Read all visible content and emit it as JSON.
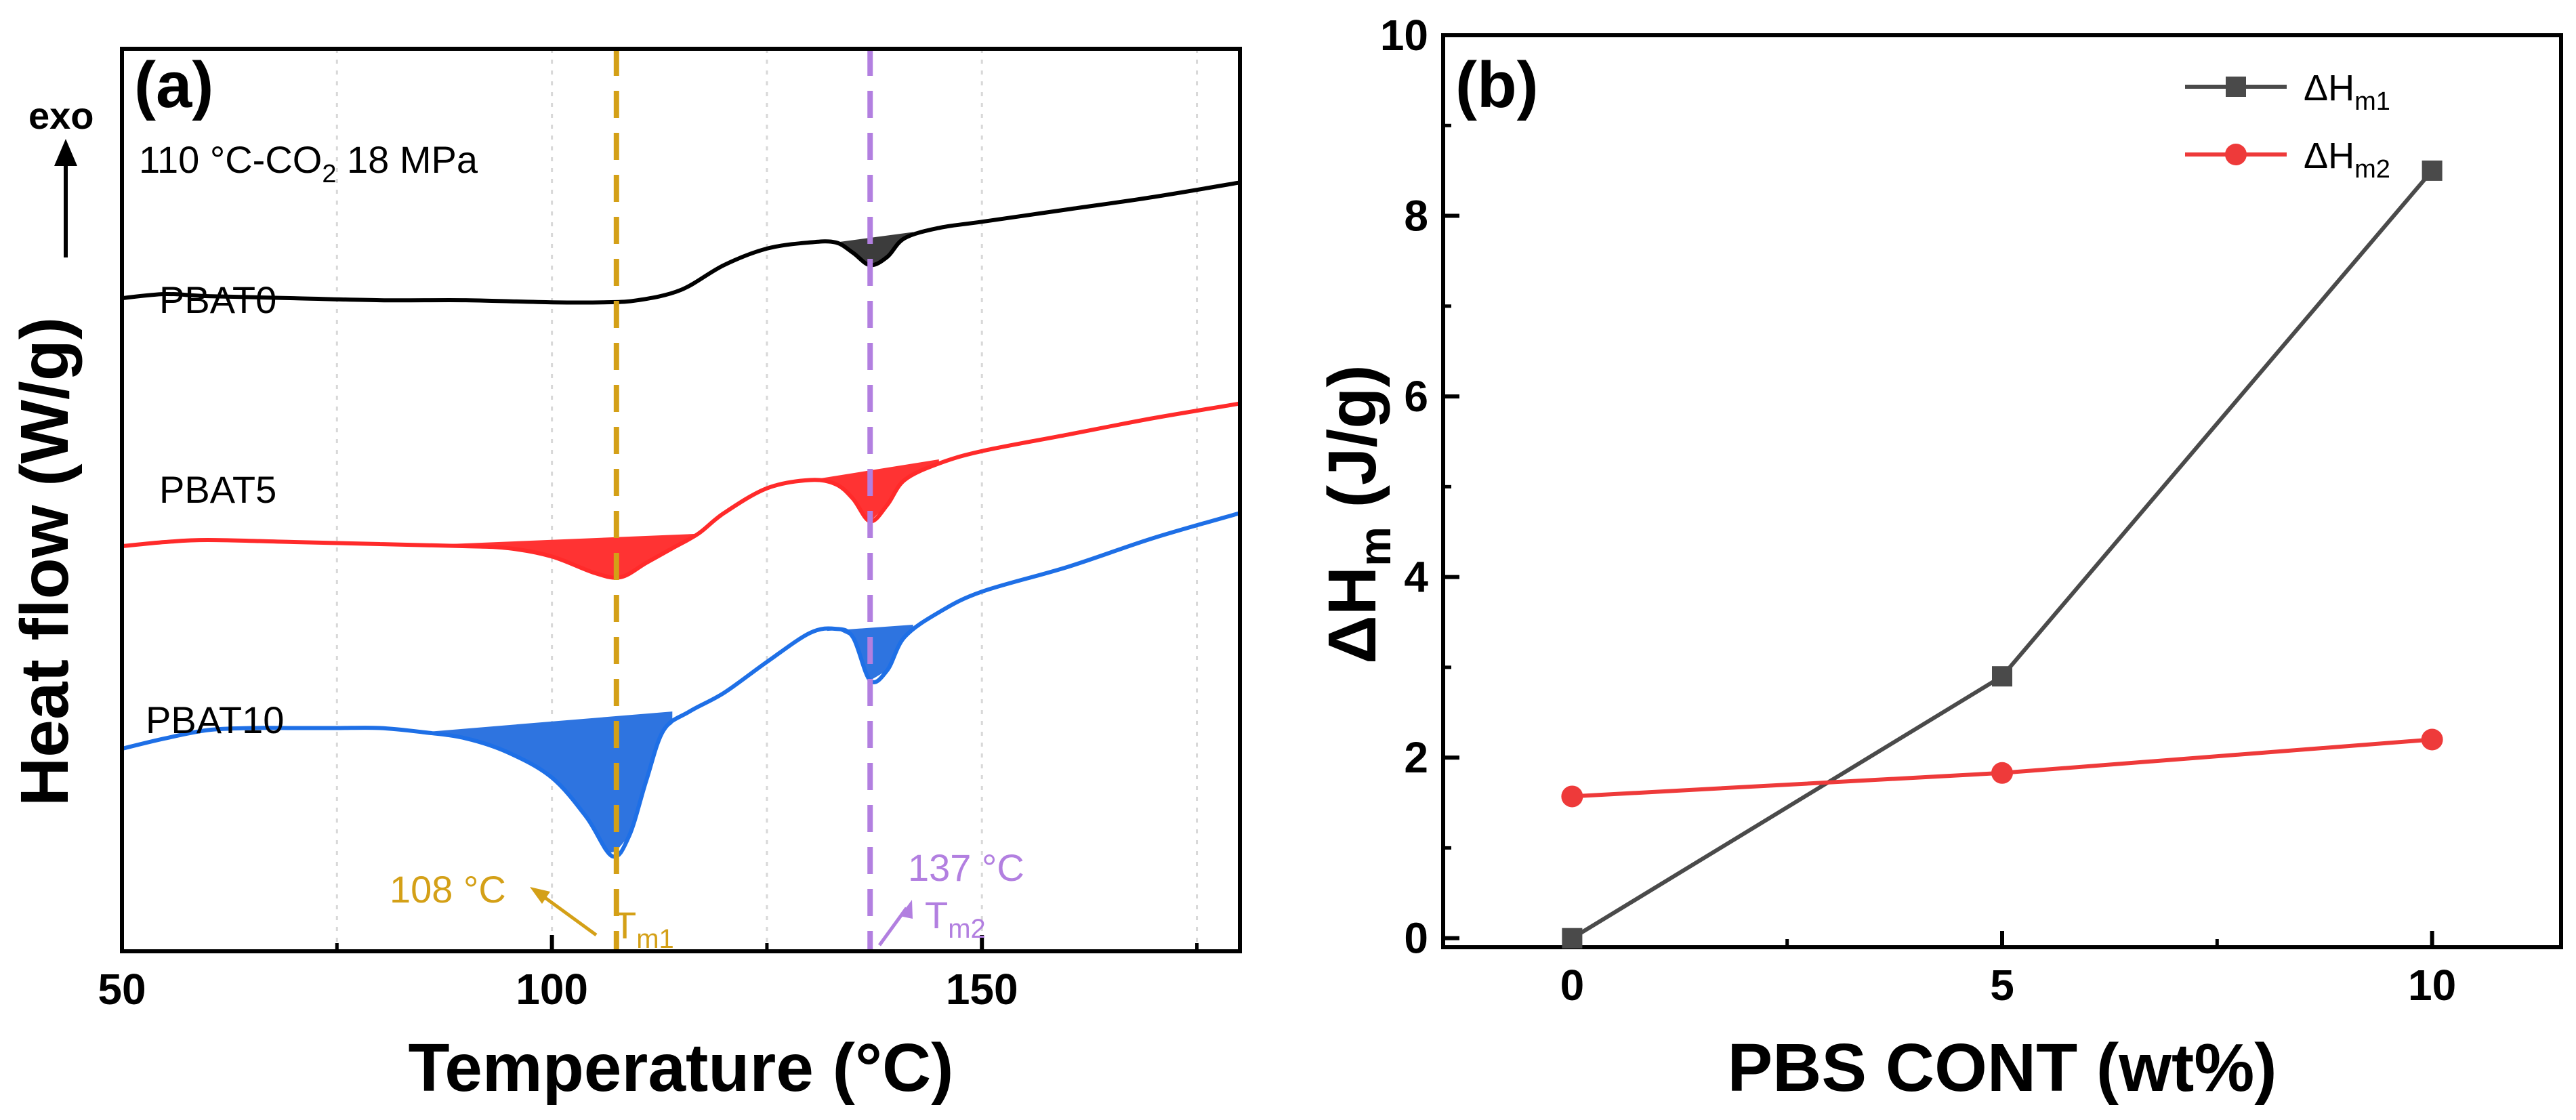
{
  "chart_data": [
    {
      "panel": "(a)",
      "type": "line",
      "xlabel": "Temperature (°C)",
      "ylabel": "Heat flow (W/g)",
      "exo_label": "exo",
      "xlim": [
        50,
        180
      ],
      "x_ticks": [
        50,
        100,
        150
      ],
      "condition": "110 °C-CO",
      "condition_sub": "2",
      "condition_tail": " 18 MPa",
      "y_ticks_shown": false,
      "series": [
        {
          "name": "PBAT0",
          "color": "#000000",
          "fill": "#3c3c3c",
          "points": [
            [
              50,
              0.18
            ],
            [
              55,
              0.2
            ],
            [
              60,
              0.19
            ],
            [
              70,
              0.18
            ],
            [
              80,
              0.17
            ],
            [
              90,
              0.17
            ],
            [
              100,
              0.16
            ],
            [
              106,
              0.16
            ],
            [
              110,
              0.17
            ],
            [
              115,
              0.22
            ],
            [
              120,
              0.34
            ],
            [
              125,
              0.42
            ],
            [
              130,
              0.45
            ],
            [
              133,
              0.45
            ],
            [
              135,
              0.4
            ],
            [
              137,
              0.34
            ],
            [
              139,
              0.38
            ],
            [
              141,
              0.47
            ],
            [
              145,
              0.52
            ],
            [
              150,
              0.55
            ],
            [
              160,
              0.61
            ],
            [
              170,
              0.67
            ],
            [
              180,
              0.74
            ]
          ],
          "fill_regions": [
            {
              "baseline": [
                [
                  133,
                  0.45
                ],
                [
                  142,
                  0.5
                ]
              ],
              "curve_range": [
                133,
                142
              ]
            }
          ]
        },
        {
          "name": "PBAT5",
          "color": "#ff2a2a",
          "fill": "#ff3333",
          "points": [
            [
              50,
              -1.02
            ],
            [
              55,
              -1.0
            ],
            [
              60,
              -0.99
            ],
            [
              70,
              -1.0
            ],
            [
              80,
              -1.01
            ],
            [
              90,
              -1.02
            ],
            [
              95,
              -1.03
            ],
            [
              100,
              -1.07
            ],
            [
              105,
              -1.15
            ],
            [
              108,
              -1.17
            ],
            [
              111,
              -1.1
            ],
            [
              114,
              -1.03
            ],
            [
              117,
              -0.96
            ],
            [
              120,
              -0.86
            ],
            [
              125,
              -0.74
            ],
            [
              130,
              -0.7
            ],
            [
              133,
              -0.72
            ],
            [
              135,
              -0.79
            ],
            [
              137,
              -0.9
            ],
            [
              139,
              -0.82
            ],
            [
              141,
              -0.7
            ],
            [
              145,
              -0.62
            ],
            [
              150,
              -0.56
            ],
            [
              160,
              -0.48
            ],
            [
              170,
              -0.4
            ],
            [
              180,
              -0.33
            ]
          ],
          "fill_regions": [
            {
              "baseline": [
                [
                  88,
                  -1.01
                ],
                [
                  117,
                  -0.96
                ]
              ],
              "curve_range": [
                88,
                117
              ]
            },
            {
              "baseline": [
                [
                  130,
                  -0.7
                ],
                [
                  145,
                  -0.6
                ]
              ],
              "curve_range": [
                130,
                145
              ]
            }
          ]
        },
        {
          "name": "PBAT10",
          "color": "#1e6fe6",
          "fill": "#2e74e0",
          "points": [
            [
              50,
              -2.0
            ],
            [
              55,
              -1.95
            ],
            [
              60,
              -1.91
            ],
            [
              65,
              -1.9
            ],
            [
              70,
              -1.9
            ],
            [
              75,
              -1.9
            ],
            [
              80,
              -1.9
            ],
            [
              85,
              -1.92
            ],
            [
              90,
              -1.95
            ],
            [
              95,
              -2.02
            ],
            [
              100,
              -2.14
            ],
            [
              104,
              -2.33
            ],
            [
              107,
              -2.52
            ],
            [
              109,
              -2.42
            ],
            [
              111,
              -2.15
            ],
            [
              113,
              -1.91
            ],
            [
              116,
              -1.82
            ],
            [
              120,
              -1.73
            ],
            [
              125,
              -1.58
            ],
            [
              130,
              -1.44
            ],
            [
              133,
              -1.42
            ],
            [
              135,
              -1.46
            ],
            [
              137,
              -1.67
            ],
            [
              139,
              -1.62
            ],
            [
              141,
              -1.46
            ],
            [
              145,
              -1.34
            ],
            [
              150,
              -1.24
            ],
            [
              160,
              -1.12
            ],
            [
              170,
              -0.98
            ],
            [
              180,
              -0.86
            ]
          ],
          "fill_regions": [
            {
              "baseline": [
                [
                  85,
                  -1.92
                ],
                [
                  114,
                  -1.82
                ]
              ],
              "curve_range": [
                85,
                114
              ]
            },
            {
              "baseline": [
                [
                  132,
                  -1.43
                ],
                [
                  142,
                  -1.4
                ]
              ],
              "curve_range": [
                132,
                142
              ]
            }
          ]
        }
      ],
      "annotations": [
        {
          "text": "108 °C",
          "color": "#d4a017"
        },
        {
          "text": "T",
          "sub": "m1",
          "color": "#d4a017"
        },
        {
          "text": "137 °C",
          "color": "#b27fe0"
        },
        {
          "text": "T",
          "sub": "m2",
          "color": "#b27fe0"
        }
      ],
      "vlines": [
        {
          "x": 107.5,
          "color": "#d4a017"
        },
        {
          "x": 137,
          "color": "#b27fe0"
        }
      ]
    },
    {
      "panel": "(b)",
      "type": "line",
      "xlabel": "PBS CONT (wt%)",
      "ylabel": "ΔH",
      "ylabel_sub": "m",
      "ylabel_tail": " (J/g)",
      "xlim": [
        -1.5,
        11.5
      ],
      "ylim": [
        -0.1,
        10
      ],
      "x_ticks": [
        0,
        5,
        10
      ],
      "y_ticks": [
        0,
        2,
        4,
        6,
        8,
        10
      ],
      "x": [
        0,
        5,
        10
      ],
      "series": [
        {
          "name": "ΔH",
          "name_sub": "m1",
          "color": "#4a4a4a",
          "marker": "square",
          "values": [
            0,
            2.9,
            8.5
          ]
        },
        {
          "name": "ΔH",
          "name_sub": "m2",
          "color": "#ee3a3a",
          "marker": "circle",
          "values": [
            1.57,
            1.83,
            2.2
          ]
        }
      ],
      "legend_position": "top-right"
    }
  ]
}
